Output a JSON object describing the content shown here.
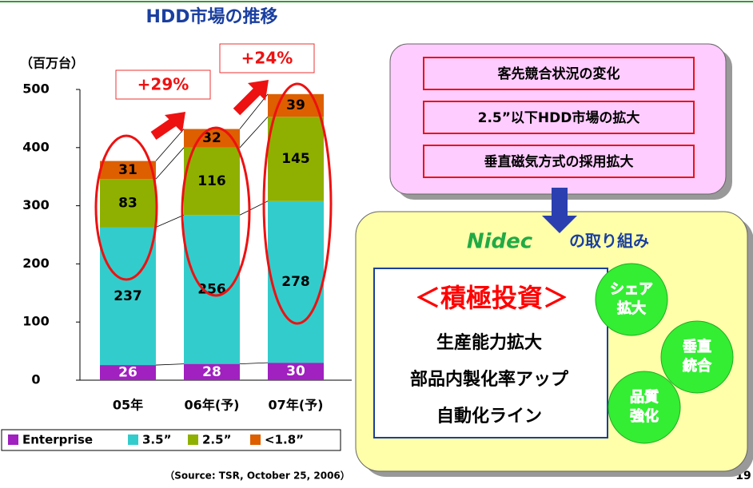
{
  "chart_data": {
    "type": "stacked_bar",
    "title": "HDD市場の推移",
    "y_axis_label": "（百万台）",
    "categories": [
      "05年",
      "06年(予)",
      "07年(予)"
    ],
    "series": [
      {
        "name": "Enterprise",
        "color": "#a020c0",
        "values": [
          26,
          28,
          30
        ]
      },
      {
        "name": "3.5”",
        "color": "#33cccc",
        "values": [
          237,
          256,
          278
        ]
      },
      {
        "name": "2.5”",
        "color": "#8fb000",
        "values": [
          83,
          116,
          145
        ]
      },
      {
        "name": "<1.8”",
        "color": "#dd5f00",
        "values": [
          31,
          32,
          39
        ]
      }
    ],
    "ylim": [
      0,
      500
    ],
    "yticks": [
      0,
      100,
      200,
      300,
      400,
      500
    ],
    "annotations": [
      "+29%",
      "+24%"
    ],
    "source": "（Source: TSR, October 25, 2006）"
  },
  "page_number": "19",
  "factors": [
    "客先競合状況の変化",
    "2.5”以下HDD市場の拡大",
    "垂直磁気方式の採用拡大"
  ],
  "nidec": {
    "logo": "Nidec",
    "heading": "の取り組み",
    "investment": "＜積極投資＞",
    "items": [
      "生産能力拡大",
      "部品内製化率アップ",
      "自動化ライン"
    ],
    "circles": [
      [
        "シェア",
        "拡大"
      ],
      [
        "垂直",
        "統合"
      ],
      [
        "品質",
        "強化"
      ]
    ]
  }
}
